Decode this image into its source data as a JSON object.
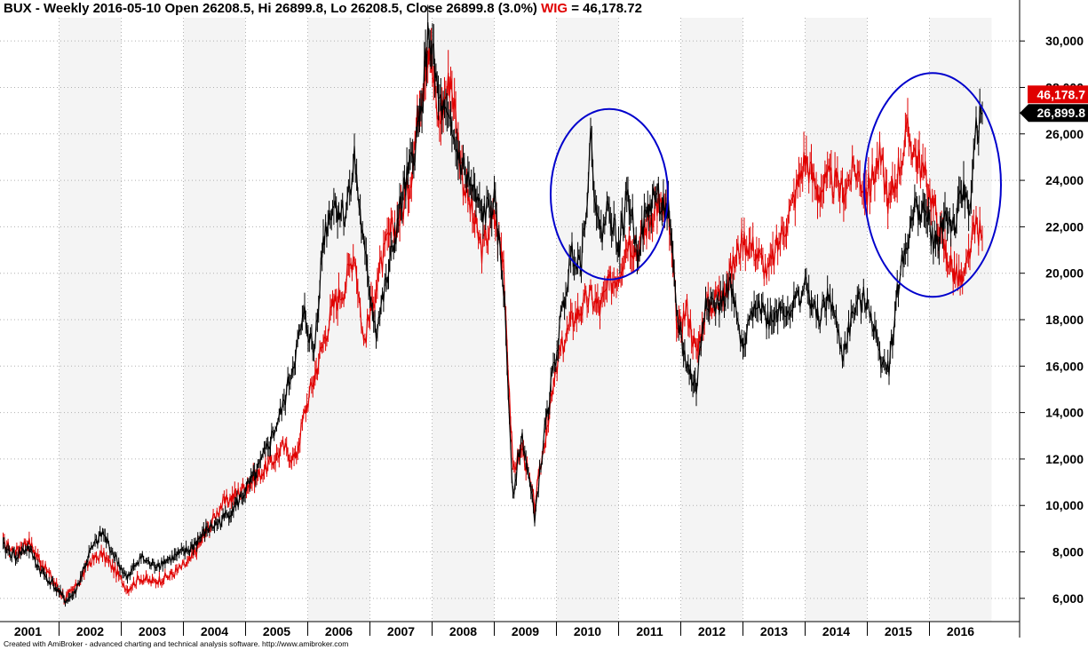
{
  "header": {
    "title_prefix": "BUX - Weekly 2016-05-10 Open 26208.5, Hi 26899.8, Lo 26208.5, Close 26899.8 (3.0%)",
    "wig_label": "WIG",
    "wig_value": "= 46,178.72"
  },
  "footer": "Created with AmiBroker - advanced charting and technical analysis software. http://www.amibroker.com",
  "colors": {
    "bux": "#000000",
    "wig": "#e00000",
    "circles": "#0000cc",
    "band": "#f4f4f4",
    "grid": "#b0b0b0"
  },
  "chart_data": {
    "type": "line",
    "title": "BUX - Weekly 2016-05-10 Open 26208.5, Hi 26899.8, Lo 26208.5, Close 26899.8 (3.0%)",
    "x_range": [
      2000.55,
      2016.95
    ],
    "ylim": [
      5000,
      31000
    ],
    "y_ticks": [
      6000,
      8000,
      10000,
      12000,
      14000,
      16000,
      18000,
      20000,
      22000,
      24000,
      26000,
      28000,
      30000
    ],
    "y_tick_labels": [
      "6,000",
      "8,000",
      "10,000",
      "12,000",
      "14,000",
      "16,000",
      "18,000",
      "20,000",
      "22,000",
      "24,000",
      "26,000",
      "28,000",
      "30,000"
    ],
    "x_ticks": [
      2001,
      2002,
      2003,
      2004,
      2005,
      2006,
      2007,
      2008,
      2009,
      2010,
      2011,
      2012,
      2013,
      2014,
      2015,
      2016
    ],
    "x_tick_labels": [
      "2001",
      "2002",
      "2003",
      "2004",
      "2005",
      "2006",
      "2007",
      "2008",
      "2009",
      "2010",
      "2011",
      "2012",
      "2013",
      "2014",
      "2015",
      "2016"
    ],
    "grid": true,
    "series": [
      {
        "name": "BUX",
        "x": [
          2000.6,
          2000.8,
          2001.0,
          2001.2,
          2001.4,
          2001.6,
          2001.75,
          2002.0,
          2002.2,
          2002.4,
          2002.6,
          2002.8,
          2003.0,
          2003.3,
          2003.6,
          2003.9,
          2004.1,
          2004.4,
          2004.7,
          2004.9,
          2005.1,
          2005.3,
          2005.45,
          2005.6,
          2005.75,
          2005.9,
          2006.1,
          2006.25,
          2006.4,
          2006.6,
          2006.8,
          2007.0,
          2007.15,
          2007.3,
          2007.45,
          2007.6,
          2007.8,
          2008.0,
          2008.3,
          2008.5,
          2008.65,
          2008.8,
          2008.95,
          2009.15,
          2009.35,
          2009.55,
          2009.75,
          2009.9,
          2010.05,
          2010.2,
          2010.35,
          2010.5,
          2010.65,
          2010.8,
          2010.95,
          2011.1,
          2011.3,
          2011.45,
          2011.6,
          2011.75,
          2011.9,
          2012.1,
          2012.3,
          2012.5,
          2012.7,
          2012.9,
          2013.1,
          2013.3,
          2013.5,
          2013.7,
          2013.9,
          2014.1,
          2014.3,
          2014.5,
          2014.7,
          2014.85,
          2015.0,
          2015.15,
          2015.3,
          2015.45,
          2015.6,
          2015.75,
          2015.9,
          2016.05,
          2016.15,
          2016.25,
          2016.35
        ],
        "values": [
          8200,
          7800,
          8200,
          7200,
          6600,
          5900,
          6200,
          8000,
          8800,
          7800,
          6800,
          7800,
          7400,
          7700,
          8100,
          9000,
          9300,
          10200,
          11500,
          12800,
          14200,
          16500,
          18200,
          16500,
          21500,
          23000,
          22500,
          25000,
          21000,
          17500,
          20000,
          23000,
          24500,
          26500,
          30500,
          27500,
          26000,
          24500,
          22500,
          23000,
          19500,
          10500,
          13000,
          9500,
          14000,
          17500,
          21000,
          20500,
          25500,
          21500,
          23000,
          21000,
          23500,
          21000,
          22500,
          23500,
          22500,
          18000,
          16000,
          15000,
          19000,
          18500,
          19500,
          16500,
          19000,
          18000,
          18500,
          18500,
          19500,
          18000,
          19000,
          16500,
          18500,
          19000,
          16500,
          16000,
          19500,
          21500,
          23000,
          22500,
          21000,
          22500,
          22000,
          23500,
          23000,
          26000,
          26900
        ]
      },
      {
        "name": "WIG",
        "x": [
          2000.6,
          2000.8,
          2001.0,
          2001.2,
          2001.4,
          2001.6,
          2001.75,
          2002.0,
          2002.2,
          2002.4,
          2002.6,
          2002.8,
          2003.0,
          2003.3,
          2003.6,
          2003.9,
          2004.1,
          2004.4,
          2004.7,
          2004.9,
          2005.1,
          2005.3,
          2005.45,
          2005.6,
          2005.75,
          2005.9,
          2006.1,
          2006.25,
          2006.4,
          2006.6,
          2006.8,
          2007.0,
          2007.15,
          2007.3,
          2007.45,
          2007.6,
          2007.8,
          2008.0,
          2008.3,
          2008.5,
          2008.65,
          2008.8,
          2008.95,
          2009.15,
          2009.35,
          2009.55,
          2009.75,
          2009.9,
          2010.05,
          2010.2,
          2010.35,
          2010.5,
          2010.65,
          2010.8,
          2010.95,
          2011.1,
          2011.3,
          2011.45,
          2011.6,
          2011.75,
          2011.9,
          2012.1,
          2012.3,
          2012.5,
          2012.7,
          2012.9,
          2013.1,
          2013.3,
          2013.5,
          2013.7,
          2013.9,
          2014.1,
          2014.3,
          2014.5,
          2014.7,
          2014.85,
          2015.0,
          2015.15,
          2015.3,
          2015.45,
          2015.6,
          2015.75,
          2015.9,
          2016.05,
          2016.15,
          2016.25,
          2016.35
        ],
        "values": [
          8400,
          8000,
          8500,
          7600,
          6800,
          6000,
          6400,
          7600,
          7900,
          7200,
          6400,
          6900,
          6700,
          7000,
          7600,
          9000,
          10000,
          10600,
          11300,
          11800,
          12500,
          12000,
          14000,
          15500,
          17000,
          18500,
          19500,
          21000,
          17000,
          19500,
          21500,
          22500,
          24000,
          27500,
          30000,
          26500,
          28500,
          24000,
          21000,
          22500,
          20500,
          11500,
          12500,
          10000,
          13500,
          16500,
          18000,
          18500,
          19000,
          18500,
          19500,
          20000,
          21500,
          21000,
          22000,
          23000,
          22500,
          17500,
          18500,
          16500,
          18500,
          19000,
          20000,
          21500,
          21000,
          20000,
          21500,
          23000,
          25000,
          23500,
          24000,
          23500,
          24500,
          23500,
          25000,
          23000,
          24500,
          26000,
          25000,
          24000,
          22500,
          21000,
          20000,
          19500,
          21000,
          22000,
          21500
        ]
      }
    ],
    "last_values": {
      "WIG": "46,178.7",
      "BUX": "26,899.8"
    }
  }
}
